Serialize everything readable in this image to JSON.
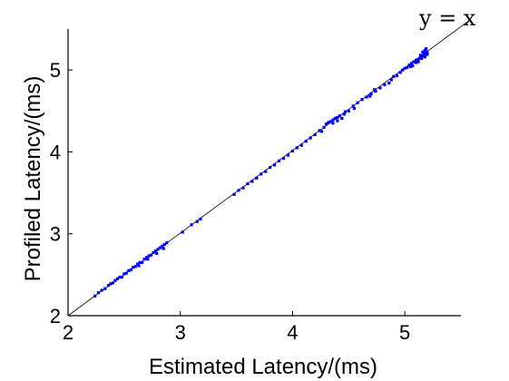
{
  "chart_data": {
    "type": "scatter",
    "xlabel": "Estimated Latency/(ms)",
    "ylabel": "Profiled Latency/(ms)",
    "xlim": [
      2,
      5.5
    ],
    "ylim": [
      2,
      5.5
    ],
    "xticks": [
      2,
      3,
      4,
      5
    ],
    "yticks": [
      2,
      3,
      4,
      5
    ],
    "x_tick_labels": [
      "2",
      "3",
      "4",
      "5"
    ],
    "y_tick_labels": [
      "2",
      "3",
      "4",
      "5"
    ],
    "reference_line": {
      "label": "y = x",
      "slope": 1,
      "intercept": 0,
      "color": "#000000"
    },
    "grid": false,
    "marker_color": "#0000ff",
    "series": [
      {
        "values": [
          [
            2.24,
            2.24
          ],
          [
            2.27,
            2.28
          ],
          [
            2.3,
            2.31
          ],
          [
            2.33,
            2.33
          ],
          [
            2.36,
            2.37
          ],
          [
            2.38,
            2.39
          ],
          [
            2.4,
            2.4
          ],
          [
            2.42,
            2.43
          ],
          [
            2.44,
            2.45
          ],
          [
            2.46,
            2.47
          ],
          [
            2.48,
            2.47
          ],
          [
            2.5,
            2.51
          ],
          [
            2.52,
            2.52
          ],
          [
            2.54,
            2.55
          ],
          [
            2.56,
            2.56
          ],
          [
            2.58,
            2.59
          ],
          [
            2.6,
            2.6
          ],
          [
            2.62,
            2.63
          ],
          [
            2.64,
            2.65
          ],
          [
            2.66,
            2.65
          ],
          [
            2.68,
            2.69
          ],
          [
            2.7,
            2.71
          ],
          [
            2.72,
            2.73
          ],
          [
            2.74,
            2.74
          ],
          [
            2.76,
            2.77
          ],
          [
            2.78,
            2.79
          ],
          [
            2.8,
            2.81
          ],
          [
            2.82,
            2.83
          ],
          [
            2.84,
            2.85
          ],
          [
            2.86,
            2.87
          ],
          [
            2.88,
            2.89
          ],
          [
            2.63,
            2.61
          ],
          [
            2.71,
            2.69
          ],
          [
            2.79,
            2.76
          ],
          [
            2.85,
            2.82
          ],
          [
            3.02,
            3.02
          ],
          [
            3.1,
            3.11
          ],
          [
            3.15,
            3.15
          ],
          [
            3.18,
            3.18
          ],
          [
            3.48,
            3.48
          ],
          [
            3.52,
            3.53
          ],
          [
            3.56,
            3.56
          ],
          [
            3.6,
            3.61
          ],
          [
            3.64,
            3.64
          ],
          [
            3.68,
            3.68
          ],
          [
            3.72,
            3.73
          ],
          [
            3.76,
            3.76
          ],
          [
            3.8,
            3.81
          ],
          [
            3.84,
            3.84
          ],
          [
            3.88,
            3.89
          ],
          [
            3.92,
            3.92
          ],
          [
            3.96,
            3.96
          ],
          [
            4.0,
            4.01
          ],
          [
            4.04,
            4.05
          ],
          [
            4.08,
            4.08
          ],
          [
            4.12,
            4.13
          ],
          [
            4.16,
            4.17
          ],
          [
            4.2,
            4.21
          ],
          [
            4.24,
            4.26
          ],
          [
            4.28,
            4.3
          ],
          [
            4.3,
            4.34
          ],
          [
            4.32,
            4.36
          ],
          [
            4.34,
            4.37
          ],
          [
            4.36,
            4.39
          ],
          [
            4.38,
            4.41
          ],
          [
            4.4,
            4.42
          ],
          [
            4.42,
            4.44
          ],
          [
            4.36,
            4.35
          ],
          [
            4.4,
            4.38
          ],
          [
            4.44,
            4.41
          ],
          [
            4.46,
            4.46
          ],
          [
            4.5,
            4.5
          ],
          [
            4.54,
            4.56
          ],
          [
            4.58,
            4.6
          ],
          [
            4.62,
            4.64
          ],
          [
            4.66,
            4.67
          ],
          [
            4.7,
            4.71
          ],
          [
            4.74,
            4.74
          ],
          [
            4.78,
            4.78
          ],
          [
            4.82,
            4.82
          ],
          [
            4.86,
            4.84
          ],
          [
            4.88,
            4.88
          ],
          [
            4.9,
            4.92
          ],
          [
            4.93,
            4.93
          ],
          [
            4.96,
            4.97
          ],
          [
            4.98,
            5.0
          ],
          [
            5.0,
            5.02
          ],
          [
            5.02,
            5.03
          ],
          [
            5.04,
            5.06
          ],
          [
            5.06,
            5.08
          ],
          [
            5.08,
            5.1
          ],
          [
            5.1,
            5.12
          ],
          [
            5.12,
            5.13
          ],
          [
            5.14,
            5.15
          ],
          [
            5.16,
            5.17
          ],
          [
            5.17,
            5.19
          ],
          [
            5.18,
            5.2
          ],
          [
            5.19,
            5.21
          ],
          [
            5.2,
            5.22
          ],
          [
            5.2,
            5.19
          ],
          [
            5.18,
            5.16
          ],
          [
            5.15,
            5.14
          ],
          [
            5.12,
            5.1
          ],
          [
            5.1,
            5.09
          ],
          [
            5.07,
            5.05
          ],
          [
            5.05,
            5.04
          ],
          [
            5.14,
            5.18
          ],
          [
            5.16,
            5.22
          ],
          [
            5.18,
            5.24
          ],
          [
            5.19,
            5.26
          ],
          [
            4.73,
            4.76
          ],
          [
            4.69,
            4.68
          ],
          [
            4.55,
            4.53
          ],
          [
            4.47,
            4.49
          ],
          [
            4.26,
            4.25
          ]
        ]
      }
    ]
  }
}
